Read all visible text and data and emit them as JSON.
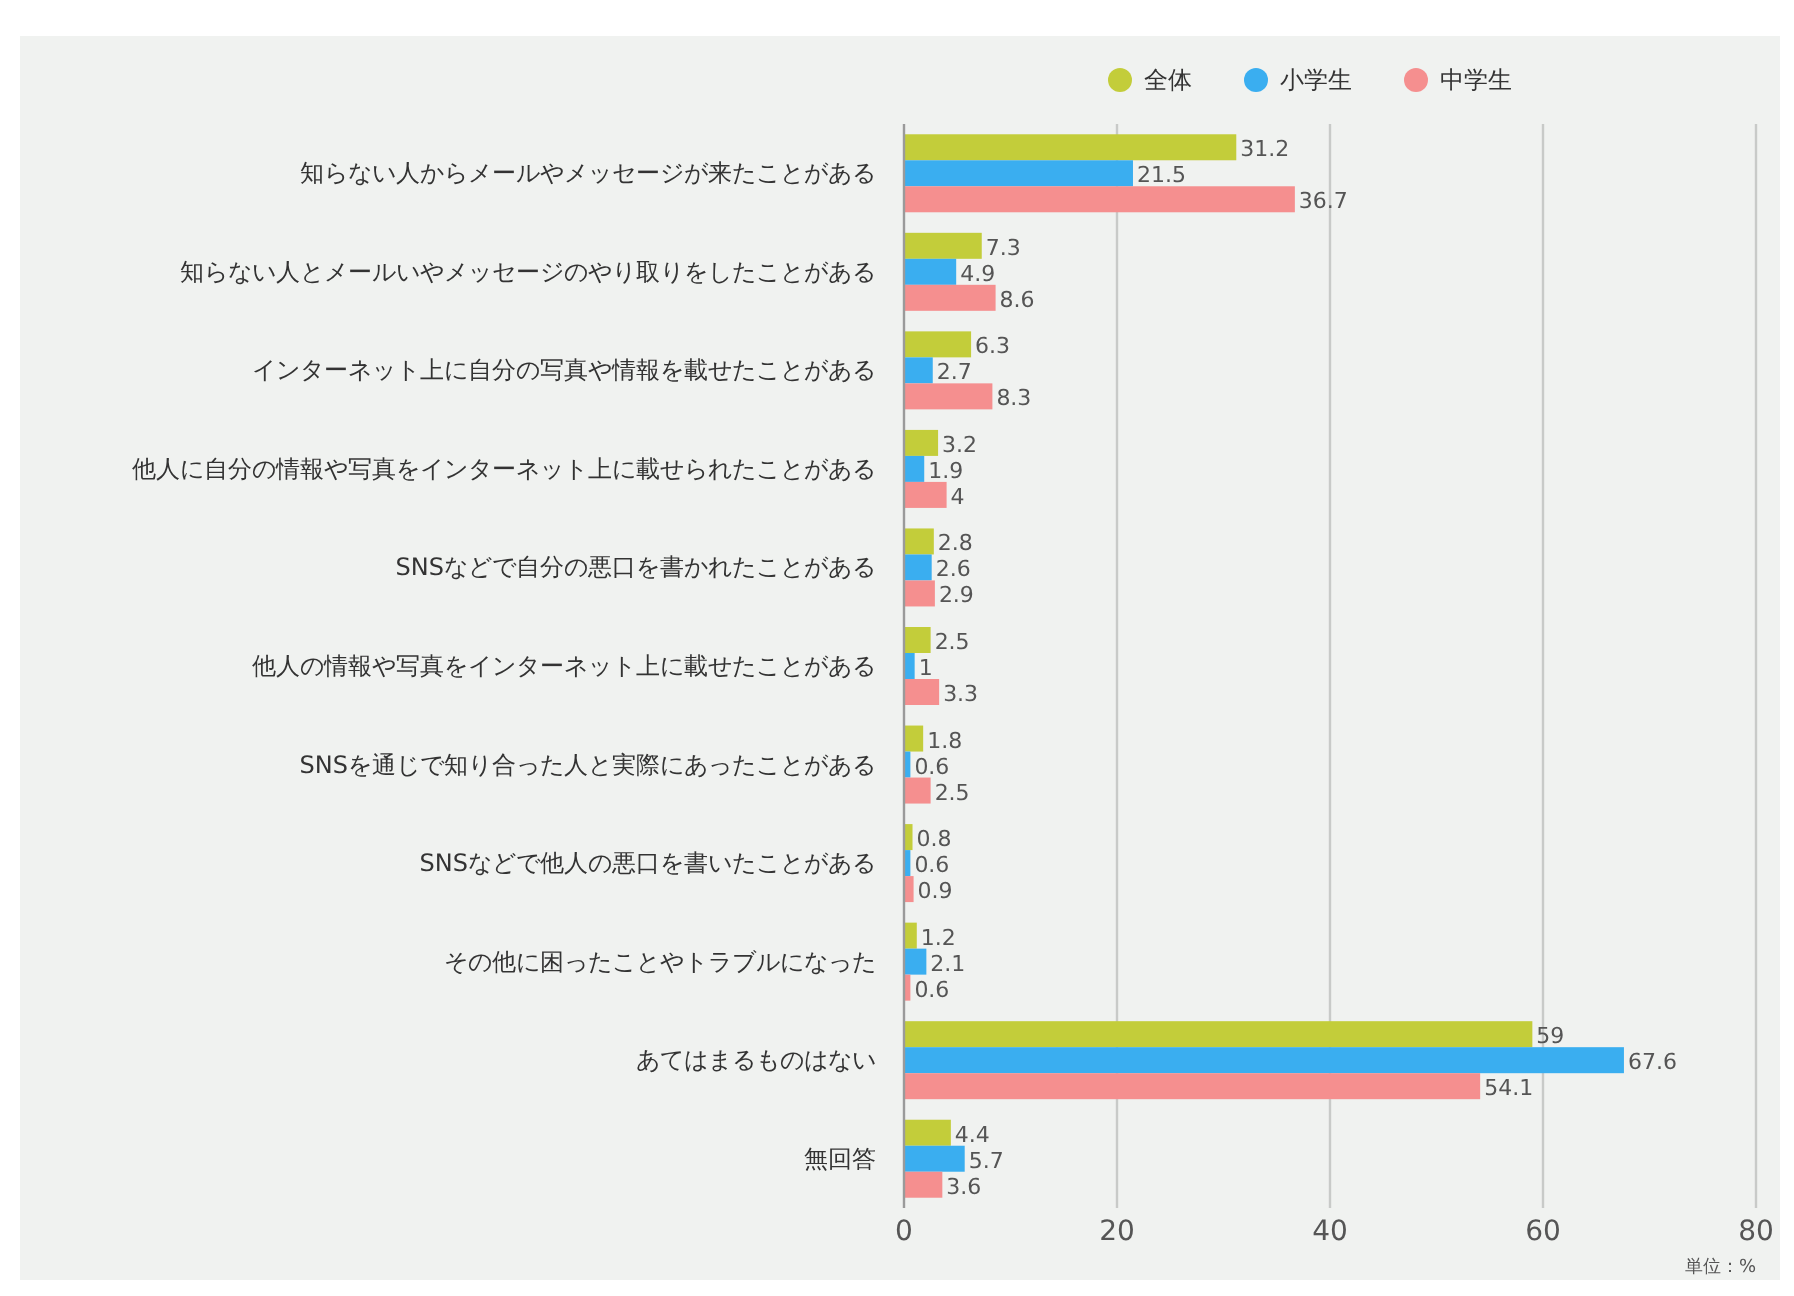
{
  "chart_data": {
    "type": "bar",
    "orientation": "horizontal",
    "categories": [
      "知らない人からメールやメッセージが来たことがある",
      "知らない人とメールいやメッセージのやり取りをしたことがある",
      "インターネット上に自分の写真や情報を載せたことがある",
      "他人に自分の情報や写真をインターネット上に載せられたことがある",
      "SNSなどで自分の悪口を書かれたことがある",
      "他人の情報や写真をインターネット上に載せたことがある",
      "SNSを通じで知り合った人と実際にあったことがある",
      "SNSなどで他人の悪口を書いたことがある",
      "その他に困ったことやトラブルになった",
      "あてはまるものはない",
      "無回答"
    ],
    "series": [
      {
        "name": "全体",
        "color": "#c3cd3a",
        "values": [
          31.2,
          7.3,
          6.3,
          3.2,
          2.8,
          2.5,
          1.8,
          0.8,
          1.2,
          59,
          4.4
        ]
      },
      {
        "name": "小学生",
        "color": "#3aaef0",
        "values": [
          21.5,
          4.9,
          2.7,
          1.9,
          2.6,
          1,
          0.6,
          0.6,
          2.1,
          67.6,
          5.7
        ]
      },
      {
        "name": "中学生",
        "color": "#f58f8f",
        "values": [
          36.7,
          8.6,
          8.3,
          4,
          2.9,
          3.3,
          2.5,
          0.9,
          0.6,
          54.1,
          3.6
        ]
      }
    ],
    "xlim": [
      0,
      80
    ],
    "xticks": [
      0,
      20,
      40,
      60,
      80
    ],
    "grid": "x",
    "legend": "top right",
    "data_labels": true,
    "annotations": [
      "単位：%"
    ]
  }
}
